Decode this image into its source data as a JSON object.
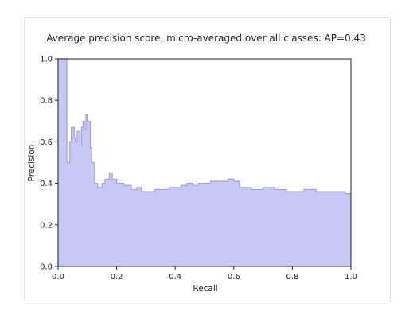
{
  "chart_data": {
    "type": "area",
    "title": "Average precision score, micro-averaged over all classes: AP=0.43",
    "xlabel": "Recall",
    "ylabel": "Precision",
    "xlim": [
      0.0,
      1.0
    ],
    "ylim": [
      0.0,
      1.0
    ],
    "xticks": [
      "0.0",
      "0.2",
      "0.4",
      "0.6",
      "0.8",
      "1.0"
    ],
    "yticks": [
      "0.0",
      "0.2",
      "0.4",
      "0.6",
      "0.8",
      "1.0"
    ],
    "grid": false,
    "fill_color": "#c8c8f5",
    "line_color": "#9f9fe0",
    "series": [
      {
        "recall": [
          0.0,
          0.025,
          0.03,
          0.04,
          0.045,
          0.055,
          0.06,
          0.065,
          0.075,
          0.08,
          0.085,
          0.09,
          0.095,
          0.1,
          0.11,
          0.115,
          0.125,
          0.135,
          0.15,
          0.16,
          0.175,
          0.185,
          0.2,
          0.225,
          0.25,
          0.27,
          0.285,
          0.3,
          0.33,
          0.36,
          0.38,
          0.4,
          0.42,
          0.44,
          0.46,
          0.48,
          0.5,
          0.52,
          0.54,
          0.56,
          0.58,
          0.6,
          0.62,
          0.64,
          0.66,
          0.68,
          0.7,
          0.72,
          0.74,
          0.76,
          0.78,
          0.8,
          0.82,
          0.84,
          0.86,
          0.88,
          0.9,
          0.92,
          0.94,
          0.96,
          0.98,
          0.99,
          1.0
        ],
        "precision": [
          1.0,
          1.0,
          0.5,
          0.6,
          0.67,
          0.62,
          0.6,
          0.65,
          0.58,
          0.67,
          0.7,
          0.66,
          0.73,
          0.7,
          0.57,
          0.5,
          0.4,
          0.38,
          0.4,
          0.42,
          0.45,
          0.42,
          0.4,
          0.39,
          0.37,
          0.38,
          0.36,
          0.36,
          0.37,
          0.37,
          0.38,
          0.38,
          0.39,
          0.4,
          0.39,
          0.4,
          0.4,
          0.41,
          0.41,
          0.41,
          0.42,
          0.41,
          0.38,
          0.38,
          0.37,
          0.37,
          0.38,
          0.38,
          0.37,
          0.37,
          0.36,
          0.36,
          0.36,
          0.37,
          0.37,
          0.36,
          0.36,
          0.36,
          0.36,
          0.36,
          0.35,
          0.35,
          0.34
        ]
      }
    ]
  }
}
